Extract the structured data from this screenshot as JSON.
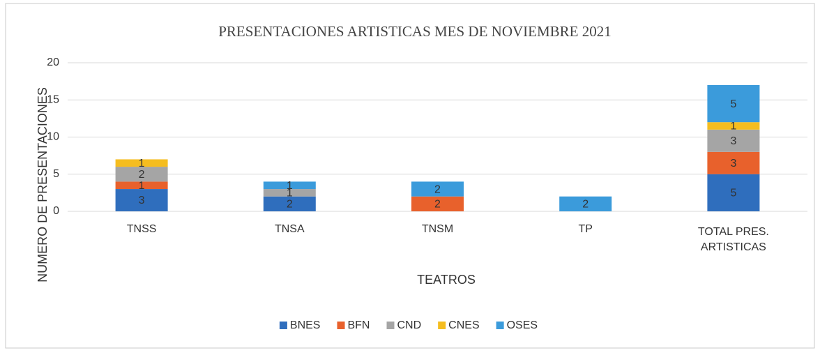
{
  "chart_data": {
    "type": "stacked_bar",
    "title": "PRESENTACIONES ARTISTICAS  MES DE NOVIEMBRE 2021",
    "xlabel": "TEATROS",
    "ylabel": "NUMERO DE PRESENTACIONES",
    "categories": [
      "TNSS",
      "TNSA",
      "TNSM",
      "TP",
      "TOTAL PRES. ARTISTICAS"
    ],
    "series": [
      {
        "name": "BNES",
        "color": "#2f6ebd",
        "values": [
          3,
          2,
          0,
          0,
          5
        ]
      },
      {
        "name": "BFN",
        "color": "#e8612c",
        "values": [
          1,
          0,
          2,
          0,
          3
        ]
      },
      {
        "name": "CND",
        "color": "#a5a5a5",
        "values": [
          2,
          1,
          0,
          0,
          3
        ]
      },
      {
        "name": "CNES",
        "color": "#f5bd1f",
        "values": [
          1,
          0,
          0,
          0,
          1
        ]
      },
      {
        "name": "OSES",
        "color": "#3b9bdb",
        "values": [
          0,
          1,
          2,
          2,
          5
        ]
      }
    ],
    "ylim": [
      0,
      20
    ],
    "yticks": [
      0,
      5,
      10,
      15,
      20
    ],
    "grid": true,
    "legend": "bottom"
  }
}
